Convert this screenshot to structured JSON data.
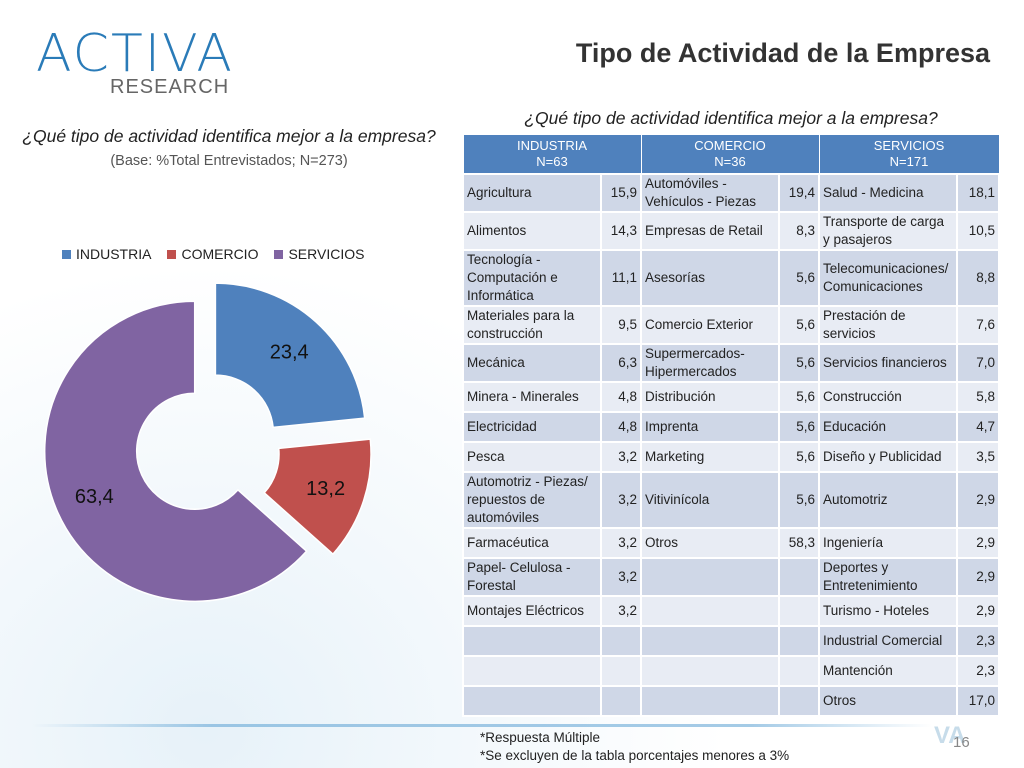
{
  "header": {
    "logo_text": "ACTIVA",
    "logo_sub": "RESEARCH",
    "title": "Tipo de Actividad de la Empresa"
  },
  "left": {
    "question": "¿Qué tipo de actividad identifica mejor a la empresa?",
    "base": "(Base: %Total Entrevistados; N=273)"
  },
  "colors": {
    "industria": "#4f81bd",
    "comercio": "#c0504d",
    "servicios": "#8064a2",
    "table_header": "#4f81bd"
  },
  "chart_data": {
    "type": "pie",
    "style": "doughnut-exploded",
    "categories": [
      "INDUSTRIA",
      "COMERCIO",
      "SERVICIOS"
    ],
    "values": [
      23.4,
      13.2,
      63.4
    ],
    "labels": [
      "23,4",
      "13,2",
      "63,4"
    ],
    "legend": "top"
  },
  "right": {
    "question": "¿Qué tipo de actividad identifica mejor a la empresa?",
    "headers": [
      {
        "name": "INDUSTRIA",
        "n": "N=63"
      },
      {
        "name": "COMERCIO",
        "n": "N=36"
      },
      {
        "name": "SERVICIOS",
        "n": "N=171"
      }
    ],
    "rows": [
      [
        "Agricultura",
        "15,9",
        "Automóviles - Vehículos - Piezas",
        "19,4",
        "Salud - Medicina",
        "18,1"
      ],
      [
        "Alimentos",
        "14,3",
        "Empresas de Retail",
        "8,3",
        "Transporte de carga y pasajeros",
        "10,5"
      ],
      [
        "Tecnología - Computación e Informática",
        "11,1",
        "Asesorías",
        "5,6",
        "Telecomunicaciones/ Comunicaciones",
        "8,8"
      ],
      [
        "Materiales para la construcción",
        "9,5",
        "Comercio Exterior",
        "5,6",
        "Prestación de servicios",
        "7,6"
      ],
      [
        "Mecánica",
        "6,3",
        "Supermercados-Hipermercados",
        "5,6",
        "Servicios financieros",
        "7,0"
      ],
      [
        "Minera - Minerales",
        "4,8",
        "Distribución",
        "5,6",
        "Construcción",
        "5,8"
      ],
      [
        "Electricidad",
        "4,8",
        "Imprenta",
        "5,6",
        "Educación",
        "4,7"
      ],
      [
        "Pesca",
        "3,2",
        "Marketing",
        "5,6",
        "Diseño y Publicidad",
        "3,5"
      ],
      [
        "Automotriz - Piezas/ repuestos de automóviles",
        "3,2",
        "Vitivinícola",
        "5,6",
        "Automotriz",
        "2,9"
      ],
      [
        "Farmacéutica",
        "3,2",
        "Otros",
        "58,3",
        "Ingeniería",
        "2,9"
      ],
      [
        "Papel- Celulosa - Forestal",
        "3,2",
        "",
        "",
        "Deportes y Entretenimiento",
        "2,9"
      ],
      [
        "Montajes Eléctricos",
        "3,2",
        "",
        "",
        "Turismo - Hoteles",
        "2,9"
      ],
      [
        "",
        "",
        "",
        "",
        "Industrial Comercial",
        "2,3"
      ],
      [
        "",
        "",
        "",
        "",
        "Mantención",
        "2,3"
      ],
      [
        "",
        "",
        "",
        "",
        "Otros",
        "17,0"
      ]
    ]
  },
  "footer": {
    "note1": "*Respuesta Múltiple",
    "note2": "*Se excluyen de la tabla porcentajes menores a 3%",
    "page": "16"
  }
}
